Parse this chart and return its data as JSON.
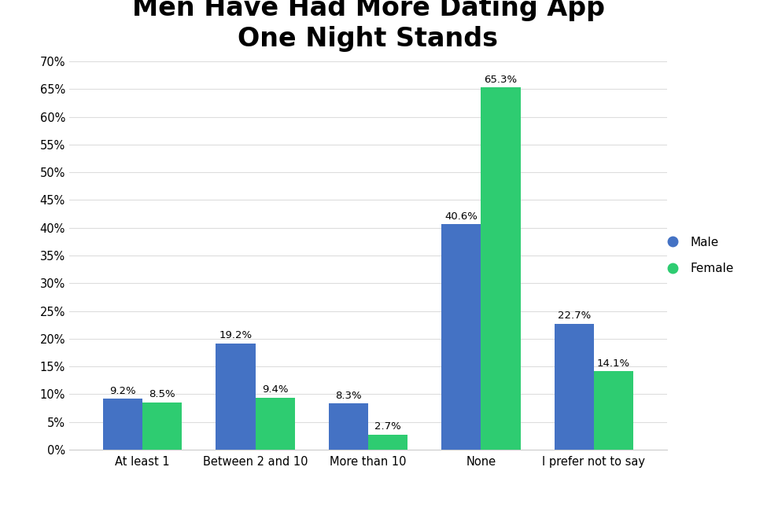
{
  "title_line1": "Men Have Had More Dating App",
  "title_line2": "One Night Stands",
  "categories": [
    "At least 1",
    "Between 2 and 10",
    "More than 10",
    "None",
    "I prefer not to say"
  ],
  "male_values": [
    9.2,
    19.2,
    8.3,
    40.6,
    22.7
  ],
  "female_values": [
    8.5,
    9.4,
    2.7,
    65.3,
    14.1
  ],
  "male_color": "#4472C4",
  "female_color": "#2ECC71",
  "male_label": "Male",
  "female_label": "Female",
  "ylim": [
    0,
    70
  ],
  "yticks": [
    0,
    5,
    10,
    15,
    20,
    25,
    30,
    35,
    40,
    45,
    50,
    55,
    60,
    65,
    70
  ],
  "ytick_labels": [
    "0%",
    "5%",
    "10%",
    "15%",
    "20%",
    "25%",
    "30%",
    "35%",
    "40%",
    "45%",
    "50%",
    "55%",
    "60%",
    "65%",
    "70%"
  ],
  "bar_width": 0.35,
  "label_fontsize": 9.5,
  "tick_fontsize": 10.5,
  "title_fontsize": 24,
  "legend_fontsize": 11,
  "background_color": "#FFFFFF",
  "grid_color": "#DDDDDD"
}
